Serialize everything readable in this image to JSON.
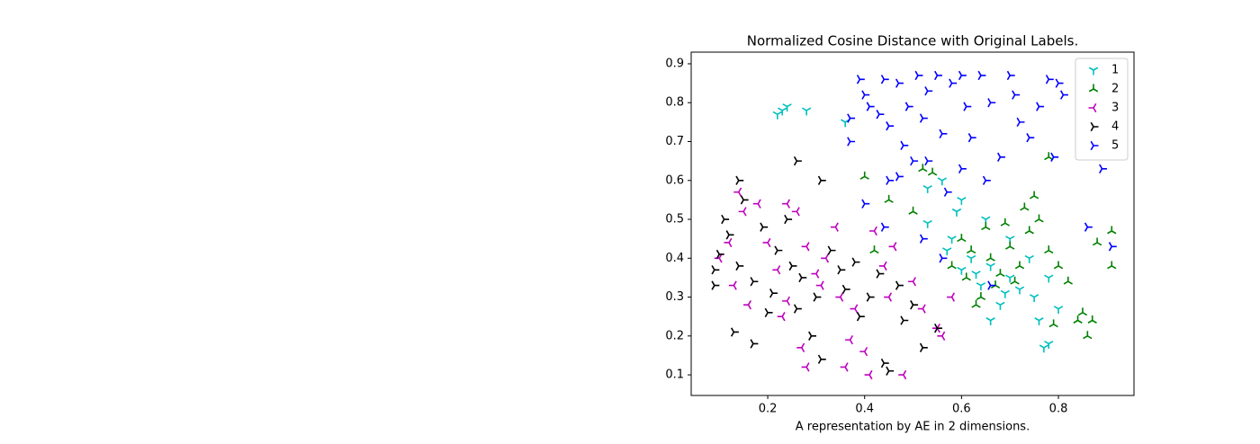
{
  "chart_data": {
    "type": "scatter",
    "title": "Normalized Cosine Distance with Original Labels.",
    "x_label": "A representation by AE in 2 dimensions.",
    "xlim": [
      0.042,
      0.956
    ],
    "ylim": [
      0.047,
      0.93
    ],
    "xticks": [
      0.2,
      0.4,
      0.6,
      0.8
    ],
    "yticks": [
      0.1,
      0.2,
      0.3,
      0.4,
      0.5,
      0.6,
      0.7,
      0.8,
      0.9
    ],
    "legend": "upper right",
    "series": [
      {
        "name": "1",
        "color": "#00bfbf",
        "marker": "tri_down",
        "x": [
          0.23,
          0.24,
          0.22,
          0.28,
          0.36,
          0.6,
          0.65,
          0.58,
          0.62,
          0.66,
          0.7,
          0.72,
          0.75,
          0.68,
          0.64,
          0.6,
          0.57,
          0.74,
          0.78,
          0.8,
          0.78,
          0.77,
          0.66,
          0.7,
          0.53,
          0.56,
          0.59,
          0.63,
          0.69,
          0.76,
          0.53
        ],
        "y": [
          0.78,
          0.79,
          0.77,
          0.78,
          0.75,
          0.55,
          0.5,
          0.45,
          0.4,
          0.38,
          0.35,
          0.32,
          0.3,
          0.28,
          0.33,
          0.37,
          0.42,
          0.4,
          0.35,
          0.27,
          0.18,
          0.17,
          0.24,
          0.45,
          0.58,
          0.6,
          0.52,
          0.36,
          0.31,
          0.24,
          0.49
        ]
      },
      {
        "name": "2",
        "color": "#008000",
        "marker": "tri_up",
        "x": [
          0.4,
          0.52,
          0.54,
          0.5,
          0.6,
          0.62,
          0.65,
          0.66,
          0.68,
          0.7,
          0.72,
          0.74,
          0.76,
          0.78,
          0.8,
          0.82,
          0.85,
          0.86,
          0.87,
          0.88,
          0.91,
          0.91,
          0.78,
          0.84,
          0.79,
          0.64,
          0.67,
          0.71,
          0.61,
          0.58,
          0.63,
          0.69,
          0.73,
          0.75,
          0.45,
          0.42
        ],
        "y": [
          0.61,
          0.63,
          0.62,
          0.52,
          0.45,
          0.42,
          0.48,
          0.4,
          0.36,
          0.43,
          0.38,
          0.47,
          0.5,
          0.42,
          0.38,
          0.34,
          0.26,
          0.2,
          0.24,
          0.44,
          0.38,
          0.47,
          0.66,
          0.24,
          0.23,
          0.3,
          0.33,
          0.34,
          0.35,
          0.38,
          0.28,
          0.49,
          0.53,
          0.56,
          0.55,
          0.42
        ]
      },
      {
        "name": "3",
        "color": "#bf00bf",
        "marker": "tri_left",
        "x": [
          0.14,
          0.15,
          0.12,
          0.1,
          0.13,
          0.16,
          0.18,
          0.2,
          0.22,
          0.24,
          0.26,
          0.24,
          0.28,
          0.3,
          0.32,
          0.34,
          0.35,
          0.37,
          0.36,
          0.4,
          0.41,
          0.42,
          0.44,
          0.45,
          0.48,
          0.5,
          0.52,
          0.55,
          0.56,
          0.58,
          0.27,
          0.28,
          0.31,
          0.23,
          0.46,
          0.38
        ],
        "y": [
          0.57,
          0.52,
          0.44,
          0.4,
          0.33,
          0.28,
          0.54,
          0.44,
          0.37,
          0.29,
          0.52,
          0.54,
          0.43,
          0.36,
          0.4,
          0.48,
          0.3,
          0.19,
          0.12,
          0.16,
          0.1,
          0.47,
          0.38,
          0.3,
          0.1,
          0.34,
          0.27,
          0.22,
          0.2,
          0.3,
          0.17,
          0.12,
          0.33,
          0.25,
          0.43,
          0.27
        ]
      },
      {
        "name": "4",
        "color": "#000000",
        "marker": "tri_right",
        "x": [
          0.09,
          0.1,
          0.11,
          0.12,
          0.14,
          0.15,
          0.14,
          0.13,
          0.17,
          0.17,
          0.19,
          0.21,
          0.22,
          0.24,
          0.25,
          0.26,
          0.26,
          0.27,
          0.29,
          0.31,
          0.3,
          0.31,
          0.33,
          0.35,
          0.36,
          0.38,
          0.39,
          0.41,
          0.43,
          0.44,
          0.45,
          0.47,
          0.48,
          0.5,
          0.52,
          0.55,
          0.2,
          0.09
        ],
        "y": [
          0.33,
          0.41,
          0.5,
          0.46,
          0.38,
          0.55,
          0.6,
          0.21,
          0.18,
          0.34,
          0.48,
          0.31,
          0.42,
          0.5,
          0.38,
          0.27,
          0.65,
          0.35,
          0.2,
          0.6,
          0.3,
          0.14,
          0.42,
          0.37,
          0.32,
          0.39,
          0.25,
          0.3,
          0.36,
          0.13,
          0.11,
          0.33,
          0.24,
          0.28,
          0.17,
          0.22,
          0.26,
          0.37
        ]
      },
      {
        "name": "5",
        "color": "#0000ff",
        "marker": "tri_right",
        "x": [
          0.37,
          0.37,
          0.39,
          0.4,
          0.41,
          0.43,
          0.44,
          0.45,
          0.47,
          0.48,
          0.49,
          0.51,
          0.52,
          0.53,
          0.55,
          0.56,
          0.58,
          0.6,
          0.61,
          0.62,
          0.64,
          0.66,
          0.68,
          0.7,
          0.71,
          0.72,
          0.74,
          0.76,
          0.78,
          0.8,
          0.81,
          0.79,
          0.89,
          0.91,
          0.86,
          0.47,
          0.5,
          0.53,
          0.57,
          0.6,
          0.65,
          0.45,
          0.4,
          0.44,
          0.52,
          0.66,
          0.56
        ],
        "y": [
          0.7,
          0.76,
          0.86,
          0.82,
          0.79,
          0.77,
          0.86,
          0.74,
          0.85,
          0.69,
          0.79,
          0.87,
          0.76,
          0.83,
          0.87,
          0.72,
          0.85,
          0.87,
          0.79,
          0.71,
          0.87,
          0.8,
          0.66,
          0.87,
          0.82,
          0.75,
          0.71,
          0.79,
          0.86,
          0.85,
          0.82,
          0.66,
          0.63,
          0.43,
          0.48,
          0.61,
          0.65,
          0.65,
          0.57,
          0.63,
          0.6,
          0.6,
          0.54,
          0.48,
          0.45,
          0.33,
          0.4
        ]
      }
    ]
  }
}
